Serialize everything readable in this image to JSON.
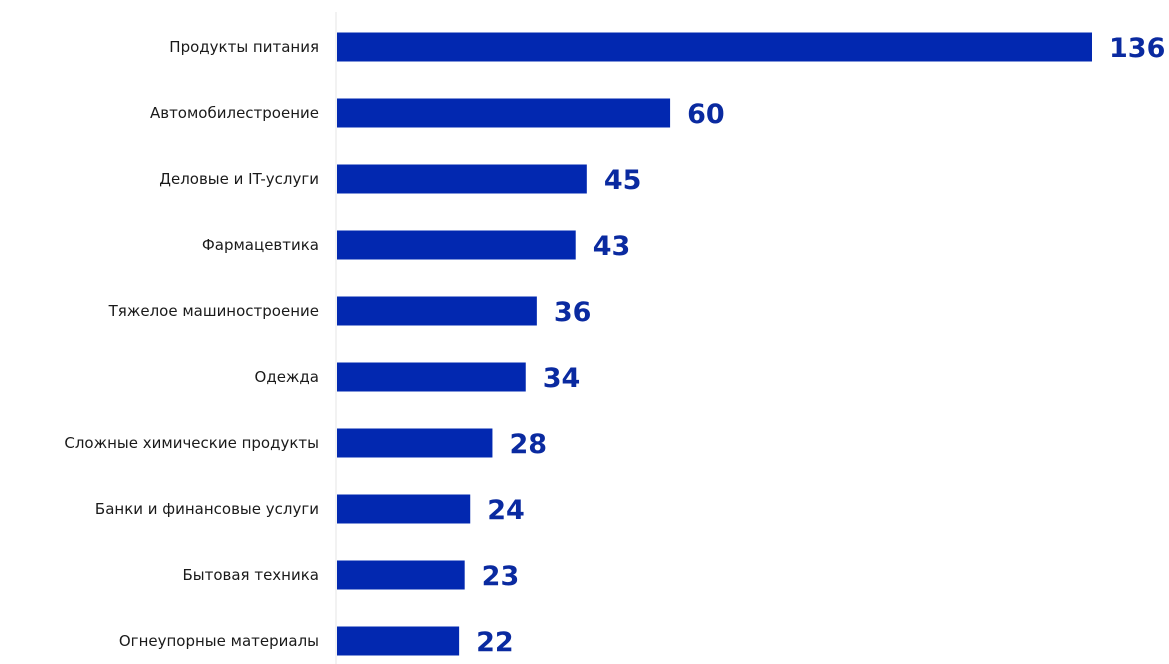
{
  "colors": {
    "bar": "#0228b0",
    "value_text": "#0a2aa0",
    "axis": "#e6e6e6"
  },
  "chart_data": {
    "type": "bar",
    "orientation": "horizontal",
    "categories": [
      "Продукты питания",
      "Автомобилестроение",
      "Деловые и IT-услуги",
      "Фармацевтика",
      "Тяжелое машиностроение",
      "Одежда",
      "Сложные химические продукты",
      "Банки и финансовые услуги",
      "Бытовая техника",
      "Огнеупорные материалы"
    ],
    "values": [
      136,
      60,
      45,
      43,
      36,
      34,
      28,
      24,
      23,
      22
    ],
    "value_labels": [
      "136",
      "60",
      "45",
      "43",
      "36",
      "34",
      "28",
      "24",
      "23",
      "22"
    ],
    "xlim": [
      0,
      136
    ],
    "grid": false,
    "legend": "none"
  }
}
